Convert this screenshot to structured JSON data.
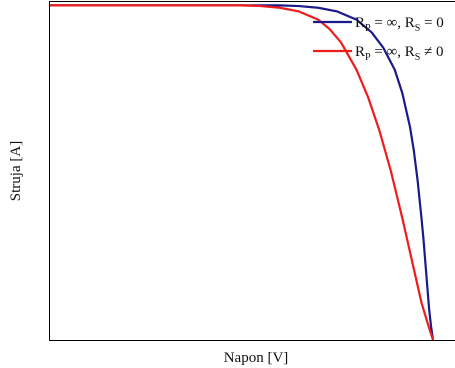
{
  "chart_data": {
    "type": "line",
    "title": "",
    "xlabel": "Napon [V]",
    "ylabel": "Struja [A]",
    "xlim": [
      0,
      1
    ],
    "ylim": [
      0,
      1
    ],
    "grid": false,
    "legend_position": "top-right",
    "series": [
      {
        "legend": {
          "prefix": "R",
          "sub1": "P",
          "mid": " = ∞, R",
          "sub2": "S",
          "suffix": " = 0"
        },
        "color": "#1a1a8c",
        "x": [
          0,
          0.2,
          0.4,
          0.5,
          0.55,
          0.6,
          0.65,
          0.7,
          0.75,
          0.8,
          0.84,
          0.87,
          0.9,
          0.92,
          0.94,
          0.95,
          0.96,
          0.97,
          0.975,
          0.98,
          0.985,
          0.99,
          0.995,
          1.0
        ],
        "y": [
          0.99,
          0.99,
          0.99,
          0.99,
          0.99,
          0.99,
          0.988,
          0.983,
          0.972,
          0.948,
          0.91,
          0.865,
          0.8,
          0.73,
          0.63,
          0.56,
          0.47,
          0.36,
          0.3,
          0.23,
          0.16,
          0.09,
          0.04,
          0.0
        ]
      },
      {
        "legend": {
          "prefix": "R",
          "sub1": "P",
          "mid": " = ∞, R",
          "sub2": "S",
          "suffix": " ≠ 0"
        },
        "color": "#ee1c1c",
        "x": [
          0,
          0.2,
          0.4,
          0.5,
          0.55,
          0.6,
          0.65,
          0.7,
          0.73,
          0.76,
          0.8,
          0.83,
          0.86,
          0.89,
          0.92,
          0.95,
          0.97,
          0.99,
          1.0
        ],
        "y": [
          0.99,
          0.99,
          0.99,
          0.99,
          0.988,
          0.983,
          0.972,
          0.948,
          0.92,
          0.88,
          0.8,
          0.72,
          0.62,
          0.5,
          0.36,
          0.21,
          0.11,
          0.035,
          0.0
        ]
      }
    ]
  }
}
